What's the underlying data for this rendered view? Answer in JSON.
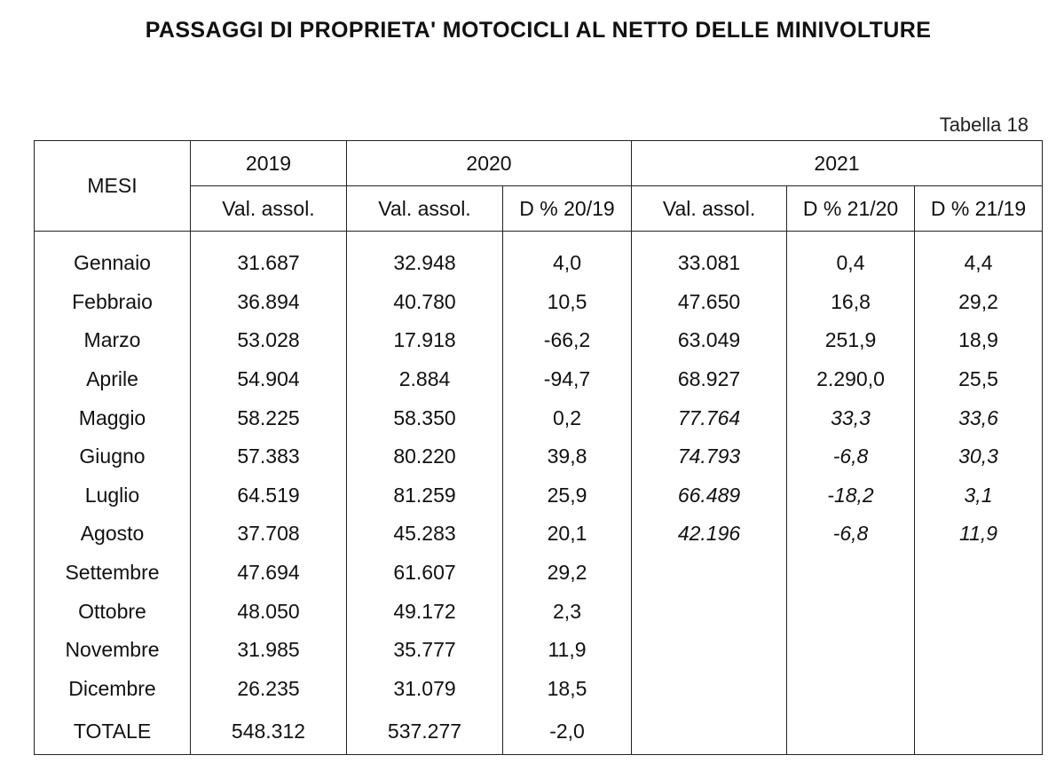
{
  "title": "PASSAGGI DI PROPRIETA' MOTOCICLI AL NETTO DELLE MINIVOLTURE",
  "table_label": "Tabella 18",
  "headers": {
    "mesi": "MESI",
    "y2019": "2019",
    "y2020": "2020",
    "y2021": "2021",
    "val_2019": "Val. assol.",
    "val_2020": "Val. assol.",
    "d_20_19": "D % 20/19",
    "val_2021": "Val. assol.",
    "d_21_20": "D % 21/20",
    "d_21_19": "D % 21/19"
  },
  "rows": [
    {
      "mese": "Gennaio",
      "v2019": "31.687",
      "v2020": "32.948",
      "d2019": "4,0",
      "v2021": "33.081",
      "d2120": "0,4",
      "d2119": "4,4"
    },
    {
      "mese": "Febbraio",
      "v2019": "36.894",
      "v2020": "40.780",
      "d2019": "10,5",
      "v2021": "47.650",
      "d2120": "16,8",
      "d2119": "29,2"
    },
    {
      "mese": "Marzo",
      "v2019": "53.028",
      "v2020": "17.918",
      "d2019": "-66,2",
      "v2021": "63.049",
      "d2120": "251,9",
      "d2119": "18,9"
    },
    {
      "mese": "Aprile",
      "v2019": "54.904",
      "v2020": "2.884",
      "d2019": "-94,7",
      "v2021": "68.927",
      "d2120": "2.290,0",
      "d2119": "25,5"
    },
    {
      "mese": "Maggio",
      "v2019": "58.225",
      "v2020": "58.350",
      "d2019": "0,2",
      "v2021": "77.764",
      "d2120": "33,3",
      "d2119": "33,6"
    },
    {
      "mese": "Giugno",
      "v2019": "57.383",
      "v2020": "80.220",
      "d2019": "39,8",
      "v2021": "74.793",
      "d2120": "-6,8",
      "d2119": "30,3"
    },
    {
      "mese": "Luglio",
      "v2019": "64.519",
      "v2020": "81.259",
      "d2019": "25,9",
      "v2021": "66.489",
      "d2120": "-18,2",
      "d2119": "3,1"
    },
    {
      "mese": "Agosto",
      "v2019": "37.708",
      "v2020": "45.283",
      "d2019": "20,1",
      "v2021": "42.196",
      "d2120": "-6,8",
      "d2119": "11,9"
    },
    {
      "mese": "Settembre",
      "v2019": "47.694",
      "v2020": "61.607",
      "d2019": "29,2",
      "v2021": "",
      "d2120": "",
      "d2119": ""
    },
    {
      "mese": "Ottobre",
      "v2019": "48.050",
      "v2020": "49.172",
      "d2019": "2,3",
      "v2021": "",
      "d2120": "",
      "d2119": ""
    },
    {
      "mese": "Novembre",
      "v2019": "31.985",
      "v2020": "35.777",
      "d2019": "11,9",
      "v2021": "",
      "d2120": "",
      "d2119": ""
    },
    {
      "mese": "Dicembre",
      "v2019": "26.235",
      "v2020": "31.079",
      "d2019": "18,5",
      "v2021": "",
      "d2120": "",
      "d2119": ""
    }
  ],
  "total": {
    "mese": "TOTALE",
    "v2019": "548.312",
    "v2020": "537.277",
    "d2019": "-2,0",
    "v2021": "",
    "d2120": "",
    "d2119": ""
  }
}
